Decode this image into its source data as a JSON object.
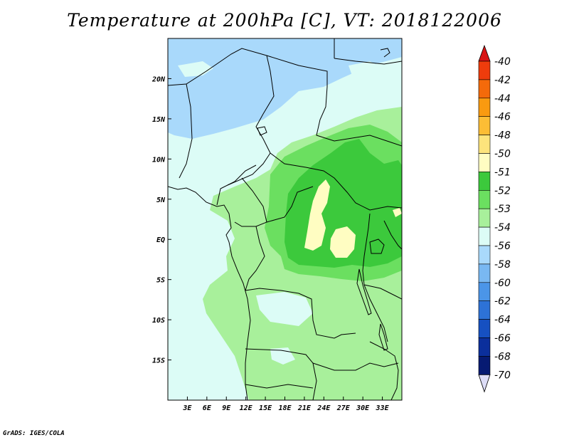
{
  "title": "Temperature at 200hPa [C], VT: 2018122006",
  "credit": "GrADS: IGES/COLA",
  "map": {
    "lon_range": [
      0,
      36
    ],
    "lat_range": [
      -20,
      25
    ],
    "x_ticks": [
      "3E",
      "6E",
      "9E",
      "12E",
      "15E",
      "18E",
      "21E",
      "24E",
      "27E",
      "30E",
      "33E"
    ],
    "x_tick_values": [
      3,
      6,
      9,
      12,
      15,
      18,
      21,
      24,
      27,
      30,
      33
    ],
    "y_ticks": [
      "20N",
      "15N",
      "10N",
      "5N",
      "EQ",
      "5S",
      "10S",
      "15S"
    ],
    "y_tick_values": [
      20,
      15,
      10,
      5,
      0,
      -5,
      -10,
      -15
    ]
  },
  "colorbar": {
    "labels": [
      "-40",
      "-42",
      "-44",
      "-46",
      "-48",
      "-50",
      "-51",
      "-52",
      "-53",
      "-54",
      "-56",
      "-58",
      "-60",
      "-62",
      "-64",
      "-66",
      "-68",
      "-70"
    ],
    "colors": [
      "#e8111a",
      "#ee3c0c",
      "#f46a0a",
      "#f99a10",
      "#fcbd35",
      "#fde47c",
      "#fffdc2",
      "#3cc93c",
      "#6bdf60",
      "#a8f09b",
      "#dcfcf6",
      "#a9d9fb",
      "#79b8f2",
      "#4b95e8",
      "#2d72d7",
      "#1650c1",
      "#0b2f9c",
      "#061a72"
    ],
    "tip_top_color": "#d81313",
    "tip_bottom_color": "#ddddf7"
  }
}
